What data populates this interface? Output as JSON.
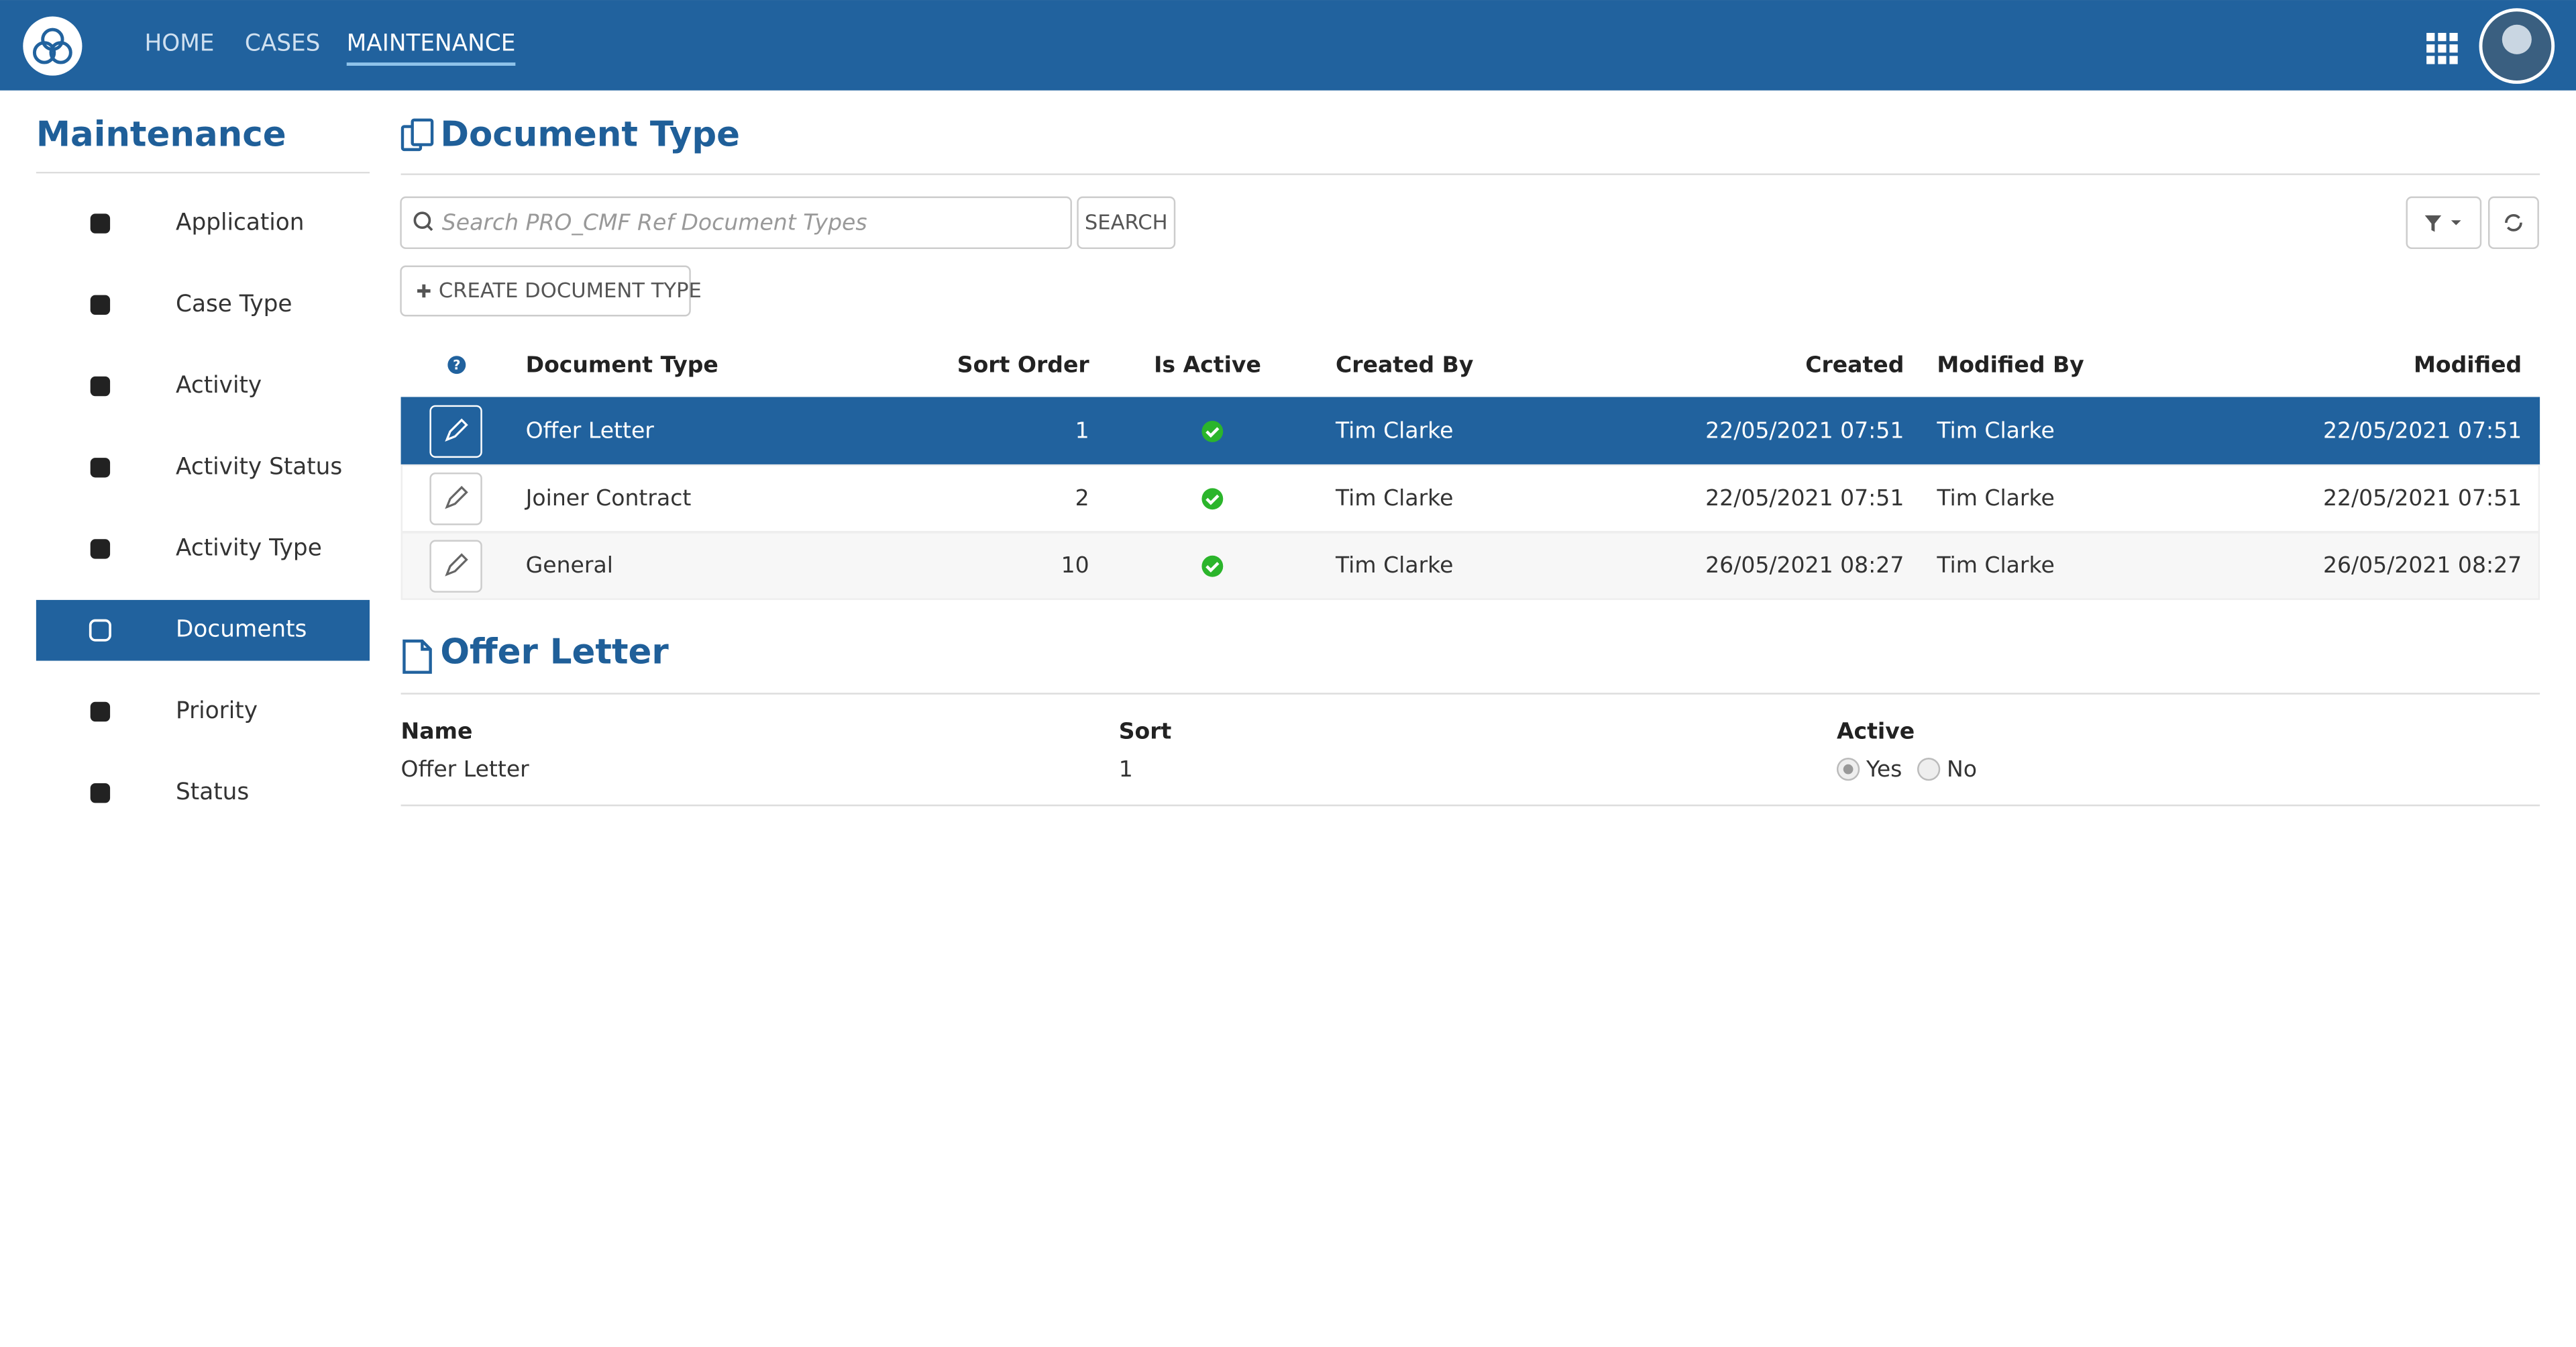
{
  "nav": {
    "items": [
      "HOME",
      "CASES",
      "MAINTENANCE"
    ],
    "active": 2
  },
  "sidebar": {
    "title": "Maintenance",
    "items": [
      "Application",
      "Case Type",
      "Activity",
      "Activity Status",
      "Activity Type",
      "Documents",
      "Priority",
      "Status"
    ],
    "active": 5
  },
  "main": {
    "title": "Document Type",
    "search_placeholder": "Search PRO_CMF Ref Document Types",
    "search_button": "SEARCH",
    "create_button": "CREATE DOCUMENT TYPE"
  },
  "table": {
    "columns": [
      "Document Type",
      "Sort Order",
      "Is Active",
      "Created By",
      "Created",
      "Modified By",
      "Modified"
    ],
    "rows": [
      {
        "document_type": "Offer Letter",
        "sort_order": 1,
        "is_active": true,
        "created_by": "Tim Clarke",
        "created": "22/05/2021 07:51",
        "modified_by": "Tim Clarke",
        "modified": "22/05/2021 07:51"
      },
      {
        "document_type": "Joiner Contract",
        "sort_order": 2,
        "is_active": true,
        "created_by": "Tim Clarke",
        "created": "22/05/2021 07:51",
        "modified_by": "Tim Clarke",
        "modified": "22/05/2021 07:51"
      },
      {
        "document_type": "General",
        "sort_order": 10,
        "is_active": true,
        "created_by": "Tim Clarke",
        "created": "26/05/2021 08:27",
        "modified_by": "Tim Clarke",
        "modified": "26/05/2021 08:27"
      }
    ],
    "selected": 0
  },
  "detail": {
    "title": "Offer Letter",
    "fields": [
      {
        "label": "Name",
        "value": "Offer Letter"
      },
      {
        "label": "Sort",
        "value": 1
      },
      {
        "label": "Active"
      }
    ],
    "options": [
      "Yes",
      "No"
    ],
    "selected": 0
  }
}
